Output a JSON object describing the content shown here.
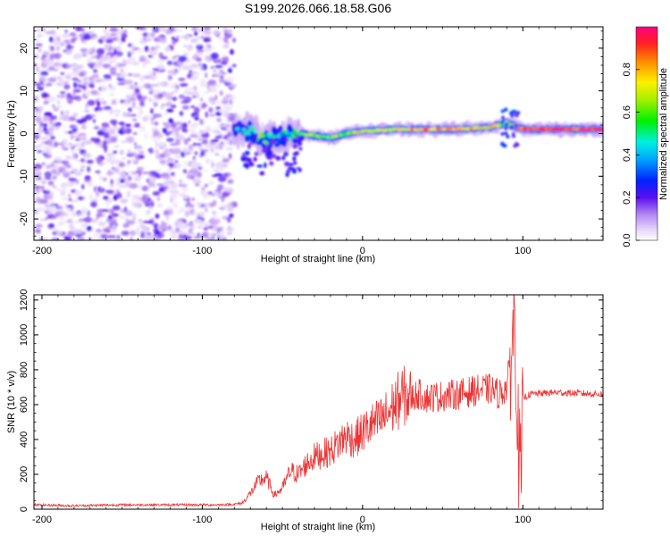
{
  "title": "S199.2026.066.18.58.G06",
  "chart_data": [
    {
      "type": "heatmap",
      "xlabel": "Height of straight line (km)",
      "ylabel": "Frequency (Hz)",
      "xlim": [
        -205,
        150
      ],
      "ylim": [
        -25,
        25
      ],
      "xticks": [
        -200,
        -100,
        0,
        100
      ],
      "yticks": [
        -20,
        -10,
        0,
        10,
        20
      ],
      "colorbar": {
        "label": "Normalized spectral amplitude",
        "range": [
          0,
          1
        ],
        "ticks": [
          "0.0",
          "0.2",
          "0.4",
          "0.6",
          "0.8"
        ],
        "tick_values": [
          0,
          0.2,
          0.4,
          0.6,
          0.8
        ]
      },
      "noise_region_x": [
        -205,
        -80
      ],
      "ridge": {
        "description_points": [
          {
            "x": -80,
            "y": 1.5,
            "amp": 0.35
          },
          {
            "x": -70,
            "y": 0.5,
            "amp": 0.5
          },
          {
            "x": -60,
            "y": -1.5,
            "amp": 0.55
          },
          {
            "x": -50,
            "y": -0.5,
            "amp": 0.45
          },
          {
            "x": -40,
            "y": 0.0,
            "amp": 0.55
          },
          {
            "x": -30,
            "y": -0.5,
            "amp": 0.6
          },
          {
            "x": -20,
            "y": -1.0,
            "amp": 0.6
          },
          {
            "x": -10,
            "y": 0.0,
            "amp": 0.65
          },
          {
            "x": 0,
            "y": 0.5,
            "amp": 0.75
          },
          {
            "x": 20,
            "y": 1.0,
            "amp": 0.7
          },
          {
            "x": 40,
            "y": 1.0,
            "amp": 0.85
          },
          {
            "x": 60,
            "y": 1.0,
            "amp": 0.8
          },
          {
            "x": 80,
            "y": 1.5,
            "amp": 0.75
          },
          {
            "x": 90,
            "y": 2.5,
            "amp": 0.6
          },
          {
            "x": 100,
            "y": 1.0,
            "amp": 0.9
          },
          {
            "x": 120,
            "y": 1.0,
            "amp": 0.95
          },
          {
            "x": 150,
            "y": 1.0,
            "amp": 0.9
          }
        ]
      }
    },
    {
      "type": "line",
      "xlabel": "Height of straight line (km)",
      "ylabel": "SNR (10 * v/v)",
      "xlim": [
        -205,
        150
      ],
      "ylim": [
        0,
        1230
      ],
      "xticks": [
        -200,
        -100,
        0,
        100
      ],
      "yticks": [
        0,
        200,
        400,
        600,
        800,
        1000,
        1200
      ],
      "color": "#ee3333",
      "series": [
        {
          "name": "SNR",
          "x": [
            -205,
            -180,
            -150,
            -120,
            -90,
            -80,
            -75,
            -70,
            -65,
            -60,
            -55,
            -50,
            -45,
            -40,
            -35,
            -30,
            -25,
            -20,
            -15,
            -10,
            -5,
            0,
            5,
            10,
            15,
            20,
            25,
            30,
            35,
            40,
            50,
            60,
            70,
            80,
            85,
            90,
            93,
            95,
            97,
            99,
            100,
            105,
            120,
            135,
            150
          ],
          "y": [
            25,
            20,
            25,
            25,
            25,
            28,
            35,
            90,
            160,
            180,
            80,
            120,
            220,
            200,
            260,
            300,
            320,
            330,
            380,
            420,
            400,
            440,
            480,
            500,
            540,
            600,
            650,
            640,
            660,
            640,
            650,
            660,
            680,
            690,
            660,
            700,
            900,
            1150,
            400,
            120,
            640,
            660,
            670,
            665,
            660
          ]
        }
      ]
    }
  ]
}
